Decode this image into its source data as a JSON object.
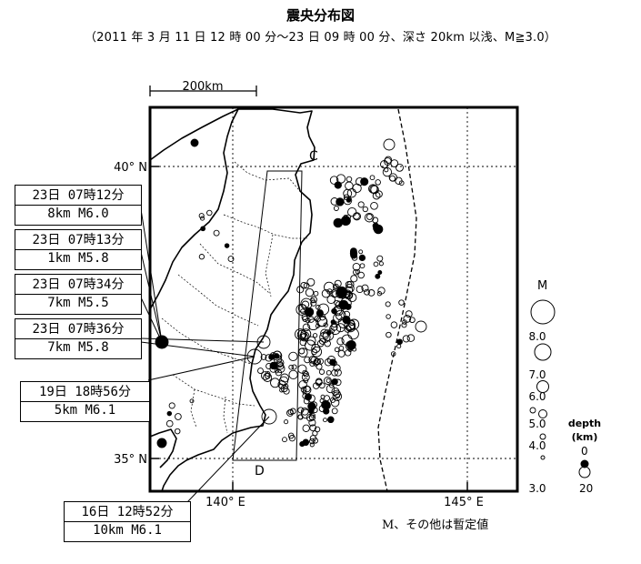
{
  "title": "震央分布図",
  "subtitle": "（2011 年 3 月 11 日 12 時 00 分～23 日 09 時 00 分、深さ 20km 以浅、M≧3.0）",
  "scale_bar": "200km",
  "lat_labels": [
    "40° N",
    "35° N"
  ],
  "lon_labels": [
    "140° E",
    "145° E"
  ],
  "region_labels": [
    "C",
    "D"
  ],
  "events": [
    {
      "line1": "23日  07時12分",
      "line2": "8km  M6.0"
    },
    {
      "line1": "23日  07時13分",
      "line2": "1km  M5.8"
    },
    {
      "line1": "23日  07時34分",
      "line2": "7km  M5.5"
    },
    {
      "line1": "23日  07時36分",
      "line2": "7km  M5.8"
    },
    {
      "line1": "19日  18時56分",
      "line2": "5km  M6.1"
    },
    {
      "line1": "16日  12時52分",
      "line2": "10km  M6.1"
    }
  ],
  "legend": {
    "m_title": "M",
    "m_values": [
      "8.0",
      "7.0",
      "6.0",
      "5.0",
      "4.0",
      "3.0"
    ],
    "depth_title": "depth",
    "depth_unit": "(km)",
    "depth_values": [
      "0",
      "20"
    ]
  },
  "note": "M、その他は暫定値"
}
